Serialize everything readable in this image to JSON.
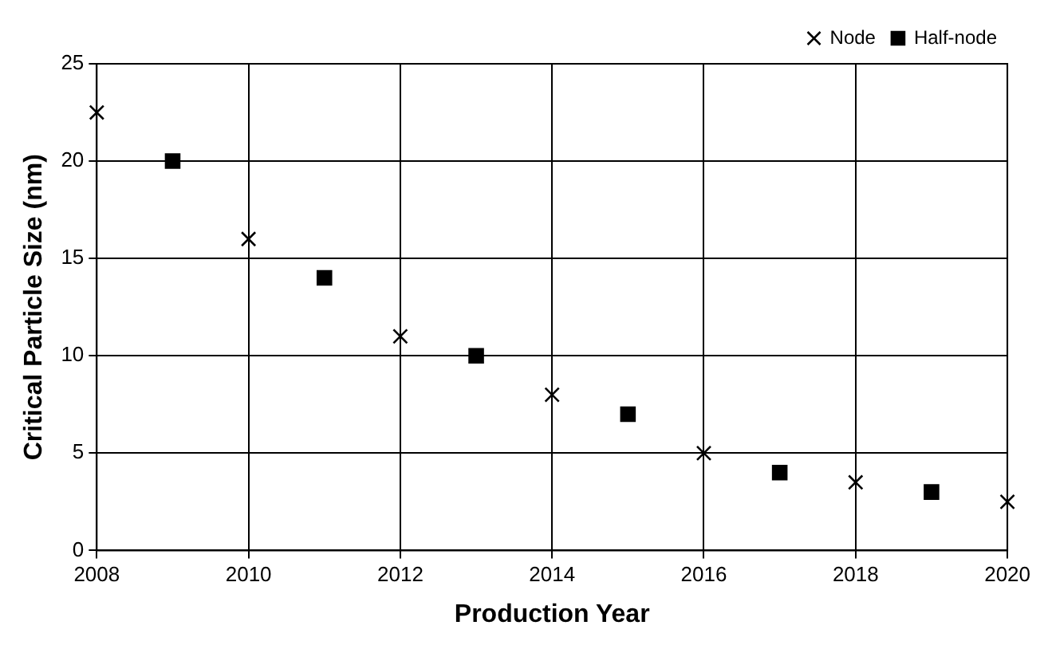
{
  "chart_data": {
    "type": "scatter",
    "xlabel": "Production Year",
    "ylabel": "Critical Particle Size (nm)",
    "xlim": [
      2008,
      2020
    ],
    "xticks": [
      2008,
      2010,
      2012,
      2014,
      2016,
      2018,
      2020
    ],
    "ylim": [
      0,
      25
    ],
    "yticks": [
      0,
      5,
      10,
      15,
      20,
      25
    ],
    "grid": true,
    "legend": "top right",
    "series": [
      {
        "name": "Node",
        "color": "#000000",
        "marker": "cross",
        "x": [
          2008,
          2010,
          2012,
          2014,
          2016,
          2018,
          2020
        ],
        "values": [
          22.5,
          16,
          11,
          8,
          5,
          3.5,
          2.5
        ]
      },
      {
        "name": "Half-node",
        "color": "#000000",
        "marker": "square",
        "x": [
          2009,
          2011,
          2013,
          2015,
          2017,
          2019
        ],
        "values": [
          20,
          14,
          10,
          7,
          4,
          3
        ]
      }
    ]
  }
}
